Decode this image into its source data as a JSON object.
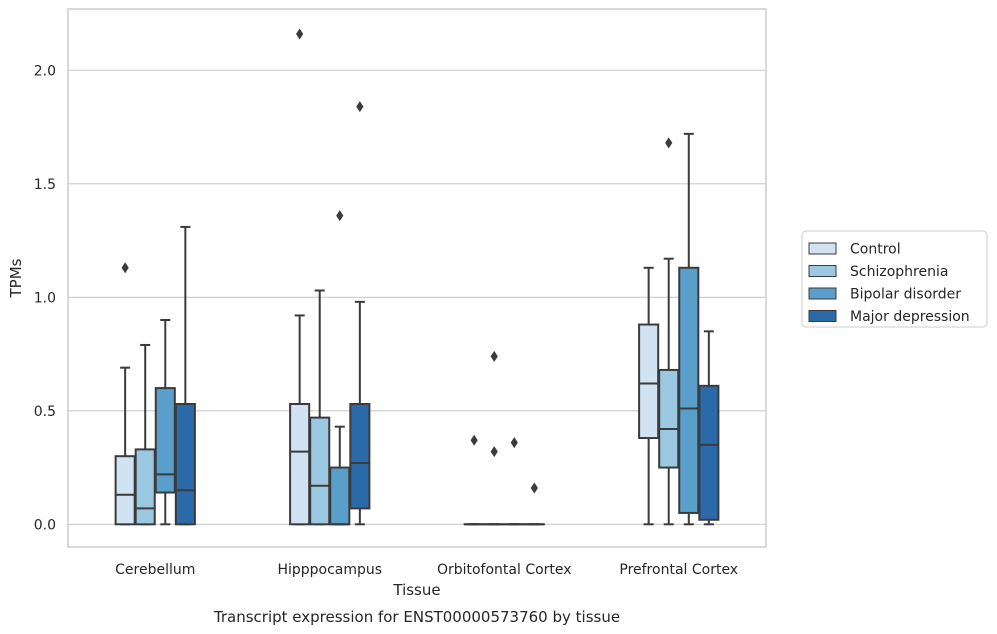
{
  "chart_data": {
    "type": "box",
    "title": "",
    "caption": "Transcript expression for ENST00000573760 by tissue",
    "xlabel": "Tissue",
    "ylabel": "TPMs",
    "ylim": [
      -0.1,
      2.27
    ],
    "yticks": [
      "0.0",
      "0.5",
      "1.0",
      "1.5",
      "2.0"
    ],
    "grid": "horizontal",
    "legend_position": "right",
    "categories": [
      "Cerebellum",
      "Hipppocampus",
      "Orbitofontal Cortex",
      "Prefrontal Cortex"
    ],
    "series": [
      {
        "name": "Control",
        "color": "#d1e3f3",
        "boxes": [
          {
            "whislo": 0.0,
            "q1": 0.0,
            "med": 0.13,
            "q3": 0.3,
            "whishi": 0.69,
            "fliers": [
              1.13
            ]
          },
          {
            "whislo": 0.0,
            "q1": 0.0,
            "med": 0.32,
            "q3": 0.53,
            "whishi": 0.92,
            "fliers": [
              2.16
            ]
          },
          {
            "whislo": 0.0,
            "q1": 0.0,
            "med": 0.0,
            "q3": 0.0,
            "whishi": 0.0,
            "fliers": [
              0.37
            ]
          },
          {
            "whislo": 0.0,
            "q1": 0.38,
            "med": 0.62,
            "q3": 0.88,
            "whishi": 1.13,
            "fliers": []
          }
        ]
      },
      {
        "name": "Schizophrenia",
        "color": "#9ac8e0",
        "boxes": [
          {
            "whislo": 0.0,
            "q1": 0.0,
            "med": 0.07,
            "q3": 0.33,
            "whishi": 0.79,
            "fliers": []
          },
          {
            "whislo": 0.0,
            "q1": 0.0,
            "med": 0.17,
            "q3": 0.47,
            "whishi": 1.03,
            "fliers": []
          },
          {
            "whislo": 0.0,
            "q1": 0.0,
            "med": 0.0,
            "q3": 0.0,
            "whishi": 0.0,
            "fliers": [
              0.32,
              0.74
            ]
          },
          {
            "whislo": 0.0,
            "q1": 0.25,
            "med": 0.42,
            "q3": 0.68,
            "whishi": 1.17,
            "fliers": [
              1.68
            ]
          }
        ]
      },
      {
        "name": "Bipolar disorder",
        "color": "#5a9fcb",
        "boxes": [
          {
            "whislo": 0.0,
            "q1": 0.14,
            "med": 0.22,
            "q3": 0.6,
            "whishi": 0.9,
            "fliers": []
          },
          {
            "whislo": 0.0,
            "q1": 0.0,
            "med": 0.0,
            "q3": 0.25,
            "whishi": 0.43,
            "fliers": [
              1.36
            ]
          },
          {
            "whislo": 0.0,
            "q1": 0.0,
            "med": 0.0,
            "q3": 0.0,
            "whishi": 0.0,
            "fliers": [
              0.36
            ]
          },
          {
            "whislo": 0.0,
            "q1": 0.05,
            "med": 0.51,
            "q3": 1.13,
            "whishi": 1.72,
            "fliers": []
          }
        ]
      },
      {
        "name": "Major depression",
        "color": "#2b6aa9",
        "boxes": [
          {
            "whislo": 0.0,
            "q1": 0.0,
            "med": 0.15,
            "q3": 0.53,
            "whishi": 1.31,
            "fliers": []
          },
          {
            "whislo": 0.0,
            "q1": 0.07,
            "med": 0.27,
            "q3": 0.53,
            "whishi": 0.98,
            "fliers": [
              1.84
            ]
          },
          {
            "whislo": 0.0,
            "q1": 0.0,
            "med": 0.0,
            "q3": 0.0,
            "whishi": 0.0,
            "fliers": [
              0.16
            ]
          },
          {
            "whislo": 0.0,
            "q1": 0.02,
            "med": 0.35,
            "q3": 0.61,
            "whishi": 0.85,
            "fliers": []
          }
        ]
      }
    ]
  },
  "colors": {
    "edge": "#3b3b3b",
    "grid": "#cccccc",
    "frame": "#cccccc"
  }
}
